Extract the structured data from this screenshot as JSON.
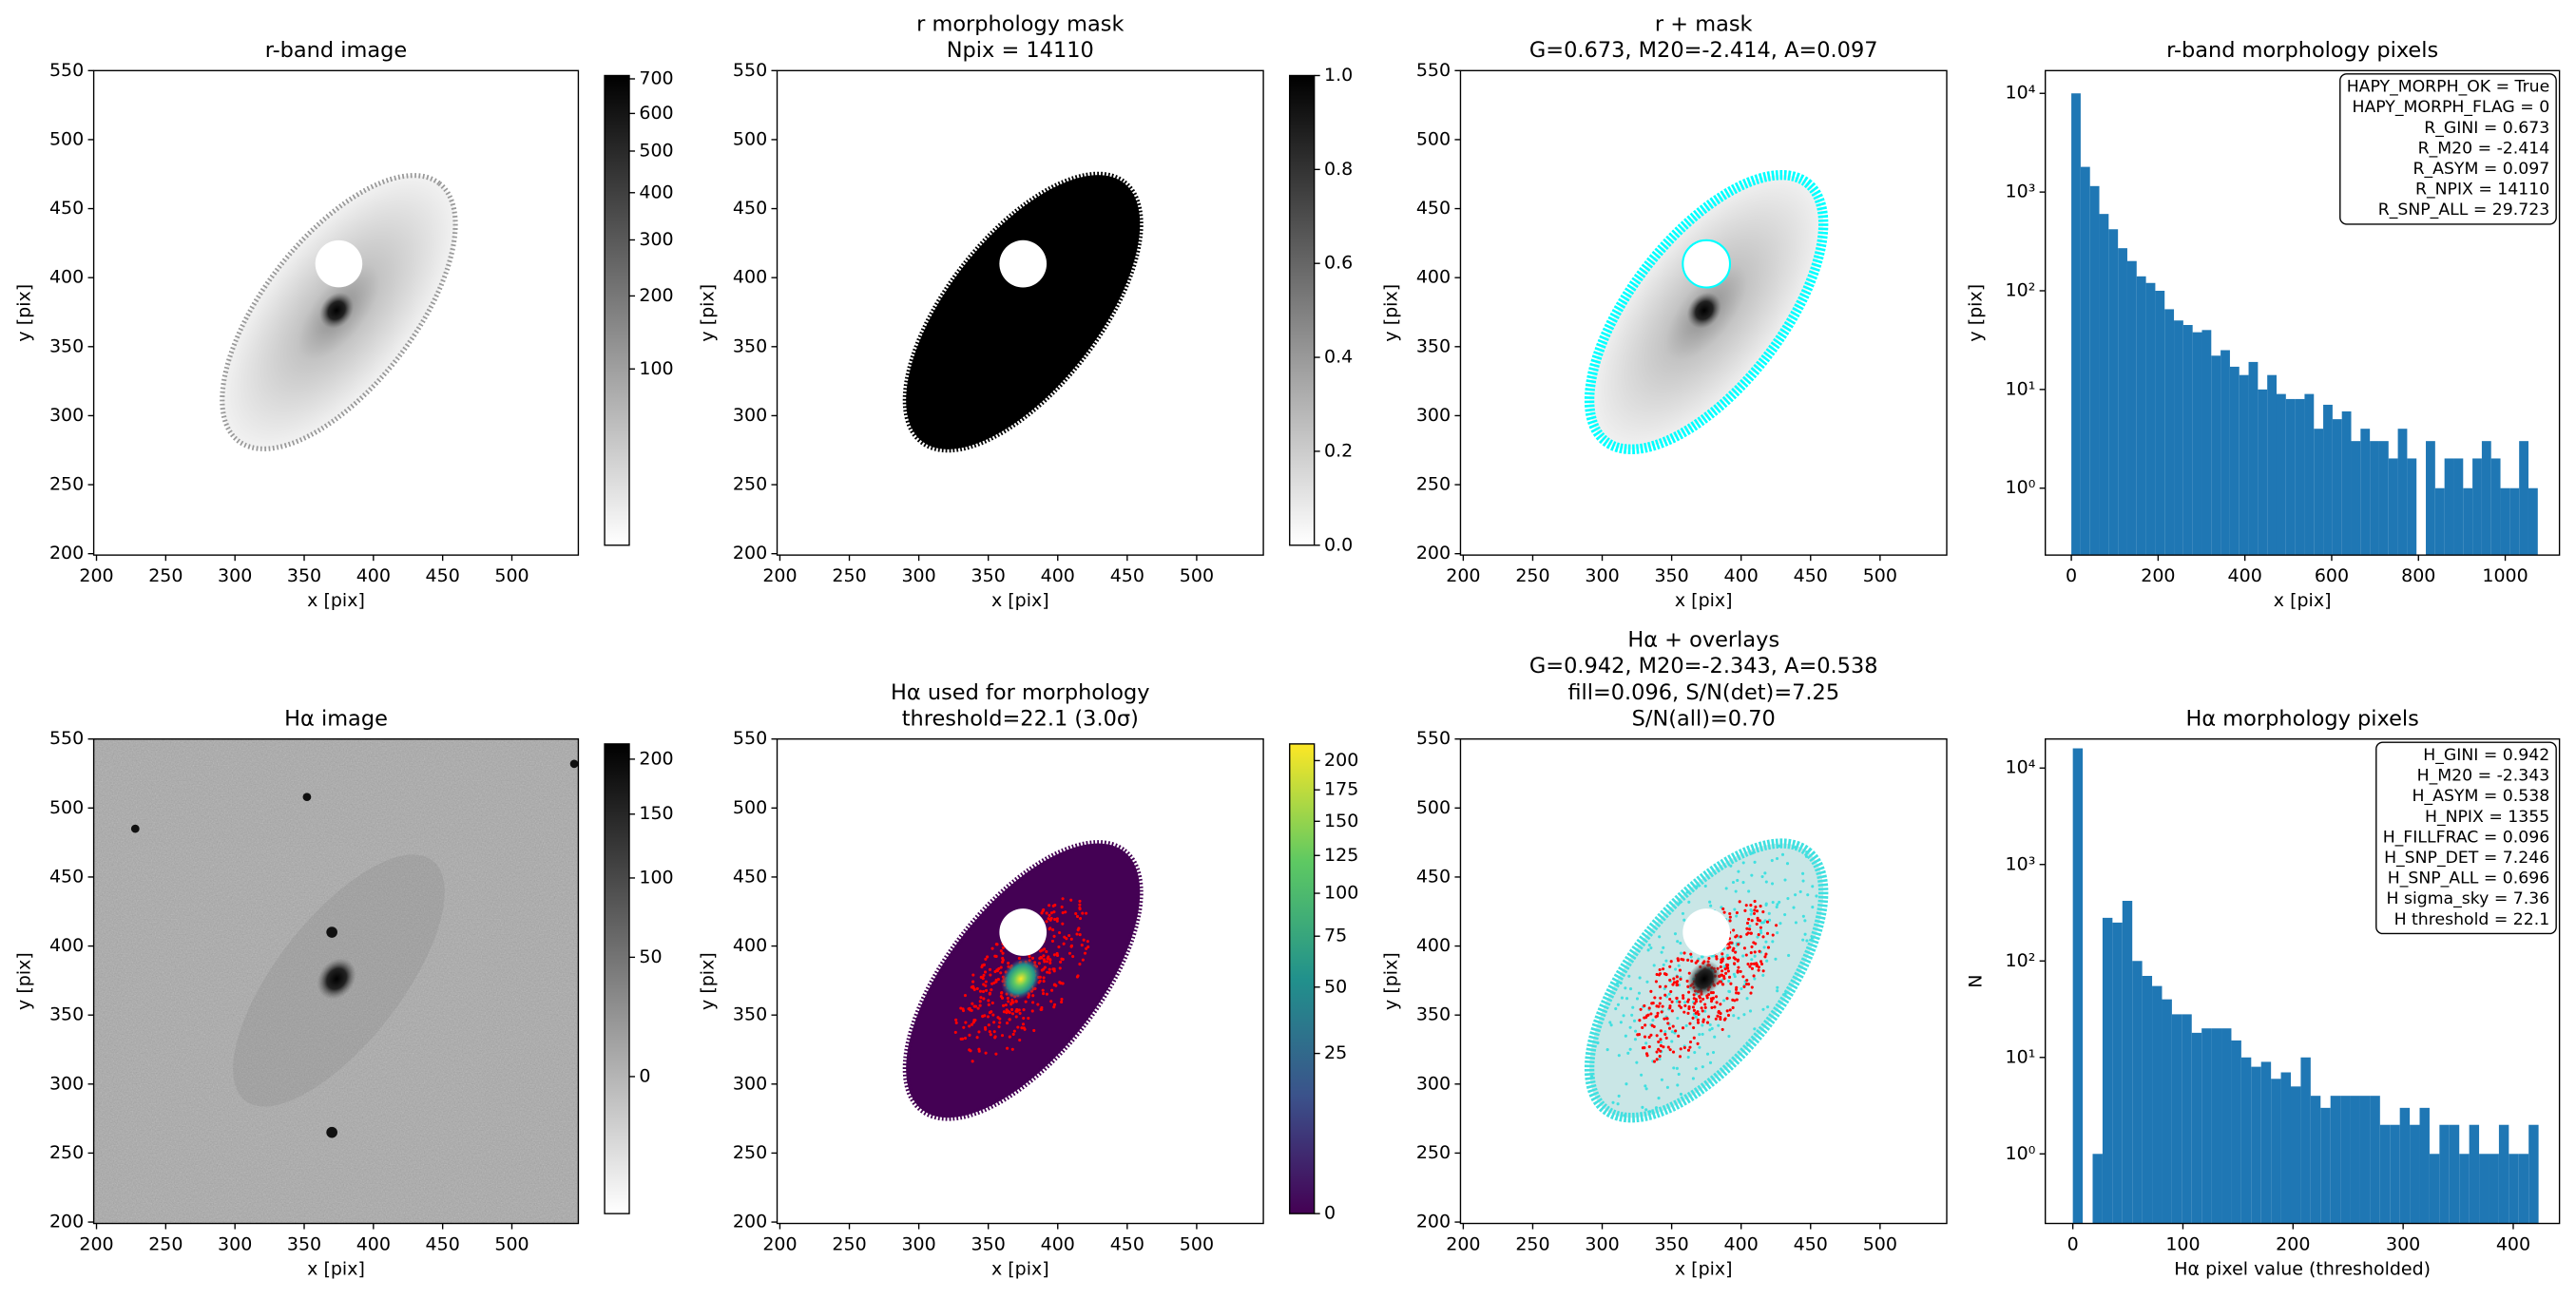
{
  "chart_data": [
    {
      "type": "image",
      "title": [
        "r-band image"
      ],
      "xlabel": "x [pix]",
      "ylabel": "y [pix]",
      "cmap": "gray_r",
      "xlim": [
        198,
        548
      ],
      "ylim": [
        199,
        550
      ],
      "xticks": [
        200,
        250,
        300,
        350,
        400,
        450,
        500
      ],
      "yticks": [
        200,
        250,
        300,
        350,
        400,
        450,
        500,
        550
      ],
      "colorbar": {
        "scale": "sqrt",
        "lim": [
          0,
          710
        ],
        "ticks": [
          100,
          200,
          300,
          400,
          500,
          600,
          700
        ]
      }
    },
    {
      "type": "image",
      "title": [
        "r morphology mask",
        "Npix = 14110"
      ],
      "xlabel": "x [pix]",
      "ylabel": "y [pix]",
      "cmap": "gray_r",
      "xlim": [
        198,
        548
      ],
      "ylim": [
        199,
        550
      ],
      "xticks": [
        200,
        250,
        300,
        350,
        400,
        450,
        500
      ],
      "yticks": [
        200,
        250,
        300,
        350,
        400,
        450,
        500,
        550
      ],
      "colorbar": {
        "scale": "linear",
        "lim": [
          0,
          1
        ],
        "ticks": [
          {
            "value": 0,
            "label": "0.0"
          },
          0.2,
          0.4,
          0.6,
          0.8,
          {
            "value": 1,
            "label": "1.0"
          }
        ]
      }
    },
    {
      "type": "image",
      "title": [
        "r + mask",
        "G=0.673, M20=-2.414, A=0.097"
      ],
      "xlabel": "x [pix]",
      "ylabel": "y [pix]",
      "cmap": "gray_r",
      "xlim": [
        198,
        548
      ],
      "ylim": [
        199,
        550
      ],
      "xticks": [
        200,
        250,
        300,
        350,
        400,
        450,
        500
      ],
      "yticks": [
        200,
        250,
        300,
        350,
        400,
        450,
        500,
        550
      ]
    },
    {
      "type": "histogram",
      "title": [
        "r-band morphology pixels"
      ],
      "xlabel": "x [pix]",
      "ylabel": "y [pix]",
      "color": "#1f77b4",
      "yscale": "log",
      "bins": [
        0,
        21.5,
        43,
        64.5,
        86,
        107.5,
        129,
        150.5,
        172,
        193.5,
        215,
        236.5,
        258,
        279.5,
        301,
        322.5,
        344,
        365.5,
        387,
        408.5,
        430,
        451.5,
        473,
        494.5,
        516,
        537.5,
        559,
        580.5,
        602,
        623.5,
        645,
        666.5,
        688,
        709.5,
        731,
        752.5,
        774,
        795.5,
        817,
        838.5,
        860,
        881.5,
        903,
        924.5,
        946,
        967.5,
        989,
        1010.5,
        1032,
        1053.5,
        1075
      ],
      "values": [
        10000,
        1800,
        1150,
        600,
        420,
        270,
        200,
        140,
        120,
        100,
        65,
        50,
        45,
        38,
        40,
        22,
        25,
        17,
        14,
        19,
        10,
        14,
        9,
        8,
        8,
        9,
        4,
        7,
        5,
        6,
        3,
        4,
        3,
        3,
        2,
        4,
        2,
        0,
        3,
        1,
        2,
        2,
        1,
        2,
        3,
        2,
        1,
        1,
        3,
        1
      ],
      "xlim": [
        -60,
        1125
      ],
      "ylim": [
        0.21,
        17000
      ],
      "xticks": [
        0,
        200,
        400,
        600,
        800,
        1000
      ],
      "yticks": [
        {
          "value": 1,
          "label": "10⁰"
        },
        {
          "value": 10,
          "label": "10¹"
        },
        {
          "value": 100,
          "label": "10²"
        },
        {
          "value": 1000,
          "label": "10³"
        },
        {
          "value": 10000,
          "label": "10⁴"
        }
      ],
      "annotation": [
        "HAPY_MORPH_OK = True",
        "HAPY_MORPH_FLAG = 0",
        "R_GINI = 0.673",
        "R_M20 = -2.414",
        "R_ASYM = 0.097",
        "R_NPIX = 14110",
        "R_SNP_ALL = 29.723"
      ]
    },
    {
      "type": "image",
      "title": [
        "Hα image"
      ],
      "xlabel": "x [pix]",
      "ylabel": "y [pix]",
      "cmap": "gray_r",
      "xlim": [
        198,
        548
      ],
      "ylim": [
        199,
        550
      ],
      "xticks": [
        200,
        250,
        300,
        350,
        400,
        450,
        500
      ],
      "yticks": [
        200,
        250,
        300,
        350,
        400,
        450,
        500,
        550
      ],
      "colorbar": {
        "scale": "sqrt",
        "lim": [
          -20,
          215
        ],
        "ticks": [
          0,
          50,
          100,
          150,
          200
        ]
      }
    },
    {
      "type": "image",
      "title": [
        "Hα used for morphology",
        "threshold=22.1 (3.0σ)"
      ],
      "xlabel": "x [pix]",
      "ylabel": "y [pix]",
      "cmap": "viridis",
      "xlim": [
        198,
        548
      ],
      "ylim": [
        199,
        550
      ],
      "xticks": [
        200,
        250,
        300,
        350,
        400,
        450,
        500
      ],
      "yticks": [
        200,
        250,
        300,
        350,
        400,
        450,
        500,
        550
      ],
      "colorbar": {
        "scale": "sqrt",
        "lim": [
          0,
          215
        ],
        "ticks": [
          0,
          25,
          50,
          75,
          100,
          125,
          150,
          175,
          200
        ]
      }
    },
    {
      "type": "image",
      "title": [
        "Hα + overlays",
        "G=0.942, M20=-2.343, A=0.538",
        "fill=0.096, S/N(det)=7.25",
        "S/N(all)=0.70"
      ],
      "xlabel": "x [pix]",
      "ylabel": "y [pix]",
      "cmap": "gray_r",
      "xlim": [
        198,
        548
      ],
      "ylim": [
        199,
        550
      ],
      "xticks": [
        200,
        250,
        300,
        350,
        400,
        450,
        500
      ],
      "yticks": [
        200,
        250,
        300,
        350,
        400,
        450,
        500,
        550
      ]
    },
    {
      "type": "histogram",
      "title": [
        "Hα morphology pixels"
      ],
      "xlabel": "Hα pixel value (thresholded)",
      "ylabel": "N",
      "color": "#1f77b4",
      "yscale": "log",
      "bins": [
        0,
        9,
        18,
        27,
        36,
        45,
        54,
        63,
        72,
        81,
        90,
        99,
        108,
        117,
        126,
        135,
        144,
        153,
        162,
        171,
        180,
        189,
        198,
        207,
        216,
        225,
        234,
        243,
        252,
        261,
        270,
        279,
        288,
        297,
        306,
        315,
        324,
        333,
        342,
        351,
        360,
        369,
        378,
        387,
        396,
        405,
        414,
        423
      ],
      "values": [
        16000,
        0,
        1,
        280,
        250,
        420,
        100,
        70,
        55,
        40,
        28,
        28,
        18,
        20,
        20,
        20,
        15,
        10,
        8,
        9,
        6,
        7,
        5,
        10,
        4,
        3,
        4,
        4,
        4,
        4,
        4,
        2,
        2,
        3,
        2,
        3,
        1,
        2,
        2,
        1,
        2,
        1,
        1,
        2,
        1,
        1,
        2
      ],
      "xlim": [
        -25,
        442
      ],
      "ylim": [
        0.19,
        20000
      ],
      "xticks": [
        0,
        100,
        200,
        300,
        400
      ],
      "yticks": [
        {
          "value": 1,
          "label": "10⁰"
        },
        {
          "value": 10,
          "label": "10¹"
        },
        {
          "value": 100,
          "label": "10²"
        },
        {
          "value": 1000,
          "label": "10³"
        },
        {
          "value": 10000,
          "label": "10⁴"
        }
      ],
      "annotation": [
        "H_GINI = 0.942",
        "H_M20 = -2.343",
        "H_ASYM = 0.538",
        "H_NPIX = 1355",
        "H_FILLFRAC = 0.096",
        "H_SNP_DET = 7.246",
        "H_SNP_ALL = 0.696",
        "H sigma_sky = 7.36",
        "H threshold = 22.1"
      ]
    }
  ]
}
